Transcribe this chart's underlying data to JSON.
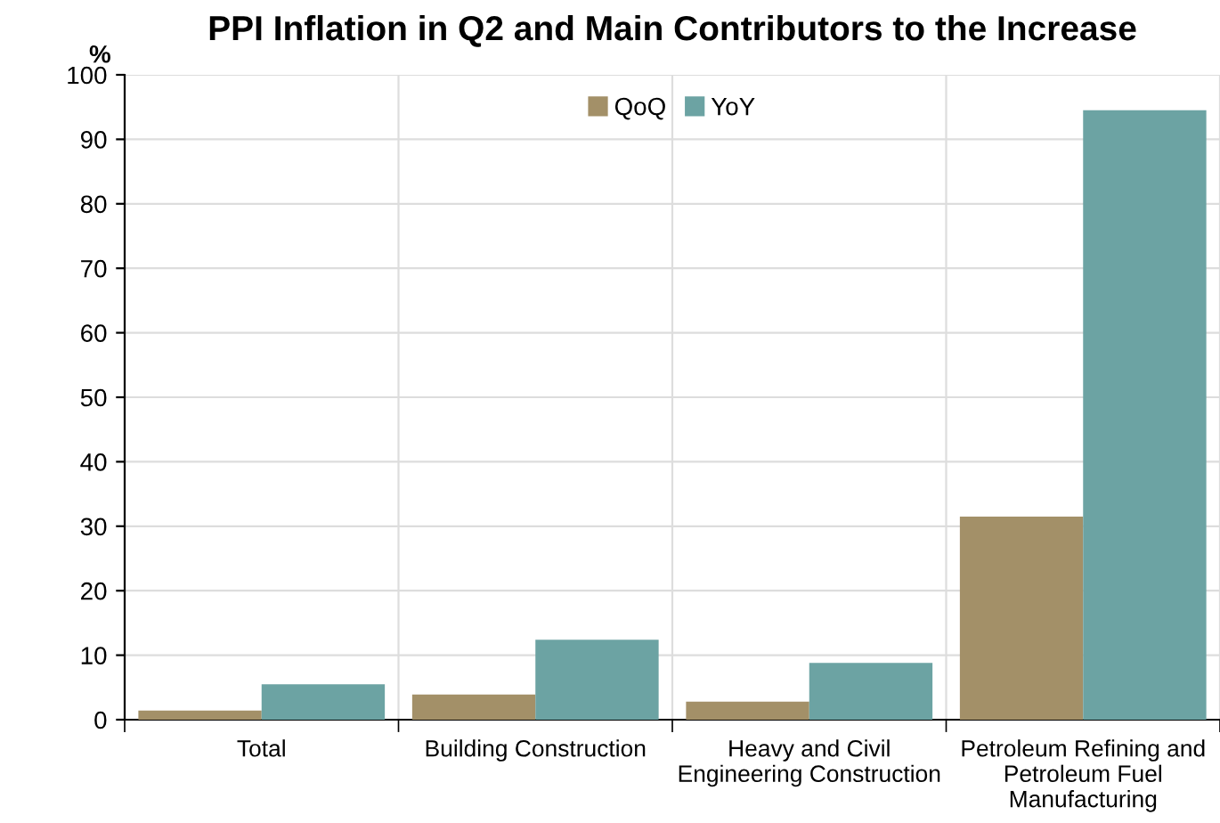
{
  "chart_data": {
    "type": "bar",
    "title": "PPI Inflation in Q2 and Main Contributors to the Increase",
    "ylabel": "%",
    "categories": [
      "Total",
      "Building Construction",
      "Heavy and Civil\nEngineering Construction",
      "Petroleum Refining and\nPetroleum Fuel\nManufacturing"
    ],
    "series": [
      {
        "name": "QoQ",
        "color": "#a39068",
        "values": [
          1.4,
          3.9,
          2.8,
          31.5
        ]
      },
      {
        "name": "YoY",
        "color": "#6ca3a3",
        "values": [
          5.5,
          12.4,
          8.8,
          94.5
        ]
      }
    ],
    "ylim": [
      0,
      100
    ],
    "yticks": [
      0,
      10,
      20,
      30,
      40,
      50,
      60,
      70,
      80,
      90,
      100
    ],
    "grid": true,
    "legend": "top"
  }
}
